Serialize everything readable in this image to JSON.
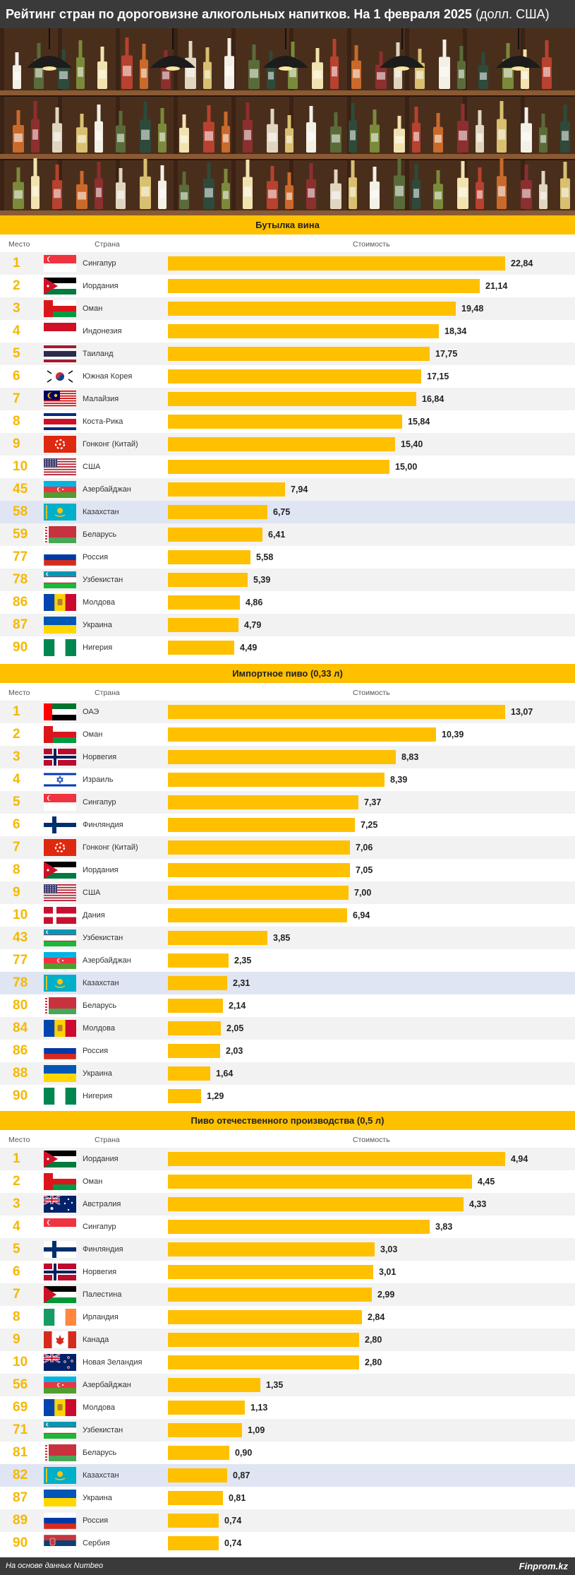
{
  "header": {
    "title_main": "Рейтинг стран по дороговизне алкогольных напитков. На 1 февраля 2025",
    "title_unit": "(долл. США)"
  },
  "columns": {
    "rank": "Место",
    "country": "Страна",
    "cost": "Стоимость"
  },
  "footer": {
    "source": "На основе данных Numbeo",
    "brand": "Finprom.kz"
  },
  "colors": {
    "accent": "#ffc000",
    "rank": "#f5b800",
    "highlight": "#dfe5f2",
    "dark": "#3a3a3a"
  },
  "chart_data": [
    {
      "type": "bar",
      "title": "Бутылка вина",
      "highlight": "Казахстан",
      "rows": [
        {
          "rank": "1",
          "country": "Сингапур",
          "flag": "singapore",
          "value": 22.84,
          "label": "22,84"
        },
        {
          "rank": "2",
          "country": "Иордания",
          "flag": "jordan",
          "value": 21.14,
          "label": "21,14"
        },
        {
          "rank": "3",
          "country": "Оман",
          "flag": "oman",
          "value": 19.48,
          "label": "19,48"
        },
        {
          "rank": "4",
          "country": "Индонезия",
          "flag": "indonesia",
          "value": 18.34,
          "label": "18,34"
        },
        {
          "rank": "5",
          "country": "Таиланд",
          "flag": "thailand",
          "value": 17.75,
          "label": "17,75"
        },
        {
          "rank": "6",
          "country": "Южная Корея",
          "flag": "korea",
          "value": 17.15,
          "label": "17,15"
        },
        {
          "rank": "7",
          "country": "Малайзия",
          "flag": "malaysia",
          "value": 16.84,
          "label": "16,84"
        },
        {
          "rank": "8",
          "country": "Коста-Рика",
          "flag": "costarica",
          "value": 15.84,
          "label": "15,84"
        },
        {
          "rank": "9",
          "country": "Гонконг (Китай)",
          "flag": "hongkong",
          "value": 15.4,
          "label": "15,40"
        },
        {
          "rank": "10",
          "country": "США",
          "flag": "usa",
          "value": 15.0,
          "label": "15,00"
        },
        {
          "rank": "45",
          "country": "Азербайджан",
          "flag": "azerbaijan",
          "value": 7.94,
          "label": "7,94"
        },
        {
          "rank": "58",
          "country": "Казахстан",
          "flag": "kazakhstan",
          "value": 6.75,
          "label": "6,75"
        },
        {
          "rank": "59",
          "country": "Беларусь",
          "flag": "belarus",
          "value": 6.41,
          "label": "6,41"
        },
        {
          "rank": "77",
          "country": "Россия",
          "flag": "russia",
          "value": 5.58,
          "label": "5,58"
        },
        {
          "rank": "78",
          "country": "Узбекистан",
          "flag": "uzbekistan",
          "value": 5.39,
          "label": "5,39"
        },
        {
          "rank": "86",
          "country": "Молдова",
          "flag": "moldova",
          "value": 4.86,
          "label": "4,86"
        },
        {
          "rank": "87",
          "country": "Украина",
          "flag": "ukraine",
          "value": 4.79,
          "label": "4,79"
        },
        {
          "rank": "90",
          "country": "Нигерия",
          "flag": "nigeria",
          "value": 4.49,
          "label": "4,49"
        }
      ]
    },
    {
      "type": "bar",
      "title": "Импортное пиво (0,33 л)",
      "highlight": "Казахстан",
      "rows": [
        {
          "rank": "1",
          "country": "ОАЭ",
          "flag": "uae",
          "value": 13.07,
          "label": "13,07"
        },
        {
          "rank": "2",
          "country": "Оман",
          "flag": "oman",
          "value": 10.39,
          "label": "10,39"
        },
        {
          "rank": "3",
          "country": "Норвегия",
          "flag": "norway",
          "value": 8.83,
          "label": "8,83"
        },
        {
          "rank": "4",
          "country": "Израиль",
          "flag": "israel",
          "value": 8.39,
          "label": "8,39"
        },
        {
          "rank": "5",
          "country": "Сингапур",
          "flag": "singapore",
          "value": 7.37,
          "label": "7,37"
        },
        {
          "rank": "6",
          "country": "Финляндия",
          "flag": "finland",
          "value": 7.25,
          "label": "7,25"
        },
        {
          "rank": "7",
          "country": "Гонконг (Китай)",
          "flag": "hongkong",
          "value": 7.06,
          "label": "7,06"
        },
        {
          "rank": "8",
          "country": "Иордания",
          "flag": "jordan",
          "value": 7.05,
          "label": "7,05"
        },
        {
          "rank": "9",
          "country": "США",
          "flag": "usa",
          "value": 7.0,
          "label": "7,00"
        },
        {
          "rank": "10",
          "country": "Дания",
          "flag": "denmark",
          "value": 6.94,
          "label": "6,94"
        },
        {
          "rank": "43",
          "country": "Узбекистан",
          "flag": "uzbekistan",
          "value": 3.85,
          "label": "3,85"
        },
        {
          "rank": "77",
          "country": "Азербайджан",
          "flag": "azerbaijan",
          "value": 2.35,
          "label": "2,35"
        },
        {
          "rank": "78",
          "country": "Казахстан",
          "flag": "kazakhstan",
          "value": 2.31,
          "label": "2,31"
        },
        {
          "rank": "80",
          "country": "Беларусь",
          "flag": "belarus",
          "value": 2.14,
          "label": "2,14"
        },
        {
          "rank": "84",
          "country": "Молдова",
          "flag": "moldova",
          "value": 2.05,
          "label": "2,05"
        },
        {
          "rank": "86",
          "country": "Россия",
          "flag": "russia",
          "value": 2.03,
          "label": "2,03"
        },
        {
          "rank": "88",
          "country": "Украина",
          "flag": "ukraine",
          "value": 1.64,
          "label": "1,64"
        },
        {
          "rank": "90",
          "country": "Нигерия",
          "flag": "nigeria",
          "value": 1.29,
          "label": "1,29"
        }
      ]
    },
    {
      "type": "bar",
      "title": "Пиво отечественного производства (0,5 л)",
      "highlight": "Казахстан",
      "rows": [
        {
          "rank": "1",
          "country": "Иордания",
          "flag": "jordan",
          "value": 4.94,
          "label": "4,94"
        },
        {
          "rank": "2",
          "country": "Оман",
          "flag": "oman",
          "value": 4.45,
          "label": "4,45"
        },
        {
          "rank": "3",
          "country": "Австралия",
          "flag": "australia",
          "value": 4.33,
          "label": "4,33"
        },
        {
          "rank": "4",
          "country": "Сингапур",
          "flag": "singapore",
          "value": 3.83,
          "label": "3,83"
        },
        {
          "rank": "5",
          "country": "Финляндия",
          "flag": "finland",
          "value": 3.03,
          "label": "3,03"
        },
        {
          "rank": "6",
          "country": "Норвегия",
          "flag": "norway",
          "value": 3.01,
          "label": "3,01"
        },
        {
          "rank": "7",
          "country": "Палестина",
          "flag": "palestine",
          "value": 2.99,
          "label": "2,99"
        },
        {
          "rank": "8",
          "country": "Ирландия",
          "flag": "ireland",
          "value": 2.84,
          "label": "2,84"
        },
        {
          "rank": "9",
          "country": "Канада",
          "flag": "canada",
          "value": 2.8,
          "label": "2,80"
        },
        {
          "rank": "10",
          "country": "Новая Зеландия",
          "flag": "newzealand",
          "value": 2.8,
          "label": "2,80"
        },
        {
          "rank": "56",
          "country": "Азербайджан",
          "flag": "azerbaijan",
          "value": 1.35,
          "label": "1,35"
        },
        {
          "rank": "69",
          "country": "Молдова",
          "flag": "moldova",
          "value": 1.13,
          "label": "1,13"
        },
        {
          "rank": "71",
          "country": "Узбекистан",
          "flag": "uzbekistan",
          "value": 1.09,
          "label": "1,09"
        },
        {
          "rank": "81",
          "country": "Беларусь",
          "flag": "belarus",
          "value": 0.9,
          "label": "0,90"
        },
        {
          "rank": "82",
          "country": "Казахстан",
          "flag": "kazakhstan",
          "value": 0.87,
          "label": "0,87"
        },
        {
          "rank": "87",
          "country": "Украина",
          "flag": "ukraine",
          "value": 0.81,
          "label": "0,81"
        },
        {
          "rank": "89",
          "country": "Россия",
          "flag": "russia",
          "value": 0.74,
          "label": "0,74"
        },
        {
          "rank": "90",
          "country": "Сербия",
          "flag": "serbia",
          "value": 0.74,
          "label": "0,74"
        }
      ]
    }
  ]
}
